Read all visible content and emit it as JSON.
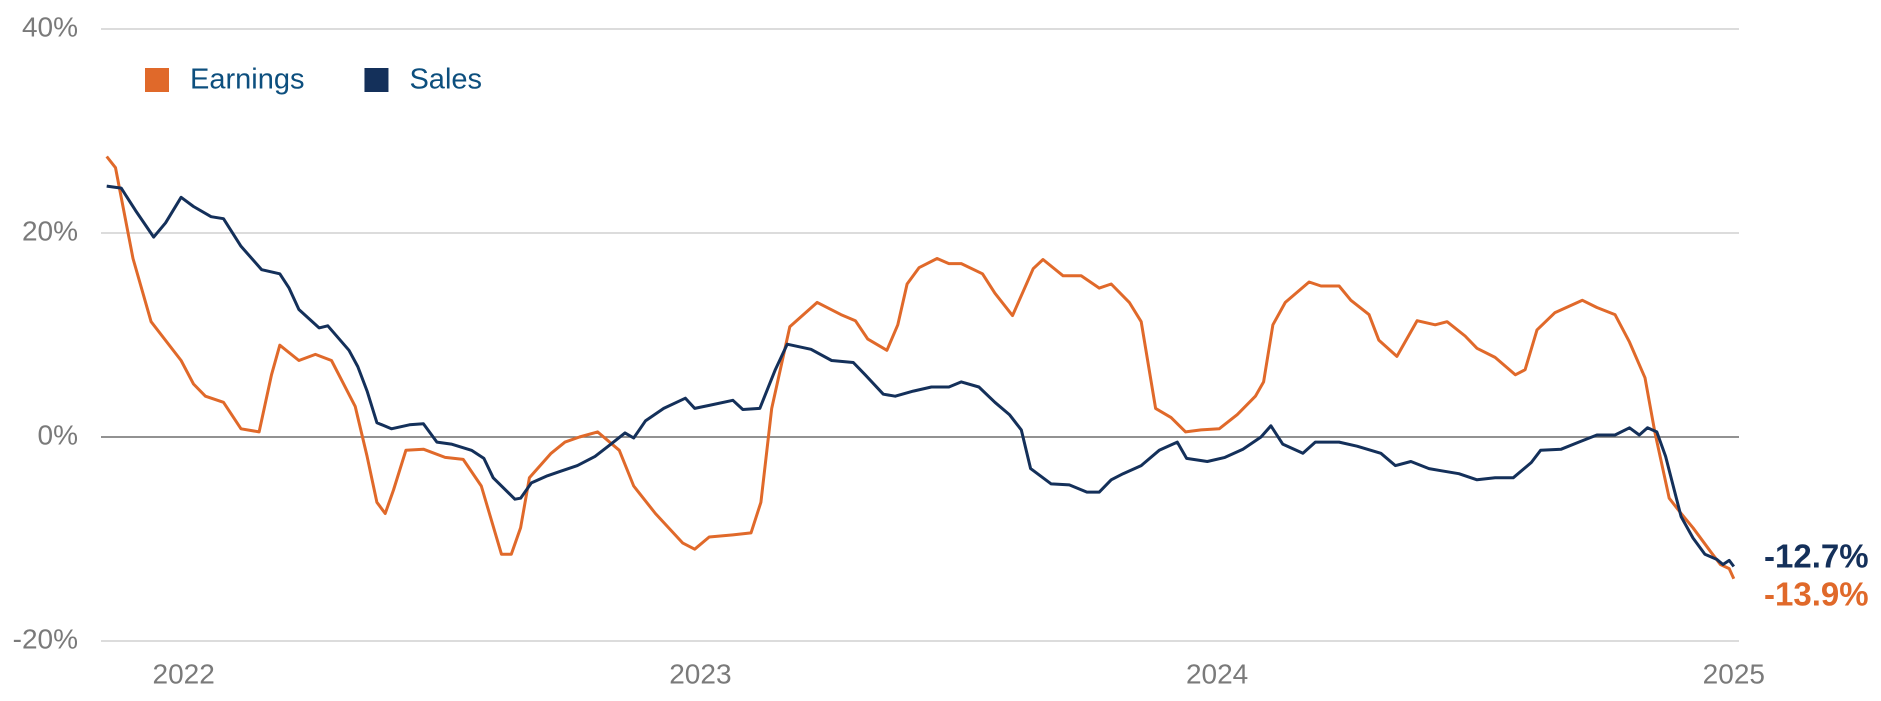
{
  "chart_data": {
    "type": "line",
    "xlim": [
      2021.84,
      2025.01
    ],
    "xticks": [
      2022,
      2023,
      2024,
      2025
    ],
    "ylim": [
      -20,
      40
    ],
    "yticks": [
      {
        "value": -20,
        "label": "-20%"
      },
      {
        "value": 0,
        "label": "0%"
      },
      {
        "value": 20,
        "label": "20%"
      },
      {
        "value": 40,
        "label": "40%"
      }
    ],
    "grid": true,
    "legend": "top-left",
    "series": [
      {
        "name": "Earnings",
        "color": "#e0692a",
        "end_label": "-13.9%",
        "x": [
          2021.851,
          2021.868,
          2021.902,
          2021.937,
          2021.995,
          2022.019,
          2022.042,
          2022.077,
          2022.111,
          2022.146,
          2022.17,
          2022.186,
          2022.223,
          2022.255,
          2022.286,
          2022.332,
          2022.355,
          2022.374,
          2022.39,
          2022.406,
          2022.43,
          2022.464,
          2022.506,
          2022.541,
          2022.576,
          2022.615,
          2022.634,
          2022.652,
          2022.669,
          2022.711,
          2022.738,
          2022.766,
          2022.801,
          2022.843,
          2022.871,
          2022.913,
          2022.966,
          2022.989,
          2023.017,
          2023.063,
          2023.098,
          2023.117,
          2023.138,
          2023.173,
          2023.226,
          2023.272,
          2023.3,
          2023.324,
          2023.361,
          2023.382,
          2023.4,
          2023.423,
          2023.458,
          2023.481,
          2023.505,
          2023.546,
          2023.57,
          2023.604,
          2023.644,
          2023.663,
          2023.702,
          2023.737,
          2023.772,
          2023.795,
          2023.83,
          2023.853,
          2023.881,
          2023.911,
          2023.939,
          2023.969,
          2024.004,
          2024.039,
          2024.074,
          2024.09,
          2024.108,
          2024.132,
          2024.178,
          2024.201,
          2024.236,
          2024.259,
          2024.294,
          2024.313,
          2024.348,
          2024.387,
          2024.422,
          2024.445,
          2024.48,
          2024.503,
          2024.538,
          2024.577,
          2024.596,
          2024.619,
          2024.654,
          2024.707,
          2024.735,
          2024.77,
          2024.798,
          2024.828,
          2024.847,
          2024.875,
          2024.898,
          2024.921,
          2024.956,
          2024.974,
          2024.991,
          2025.0
        ],
        "values": [
          27.5,
          26.4,
          17.5,
          11.3,
          7.5,
          5.2,
          4,
          3.4,
          0.8,
          0.5,
          6.1,
          9,
          7.5,
          8.1,
          7.5,
          3,
          -1.9,
          -6.4,
          -7.5,
          -5.2,
          -1.3,
          -1.2,
          -2,
          -2.2,
          -4.8,
          -11.5,
          -11.5,
          -8.9,
          -4,
          -1.6,
          -0.5,
          0,
          0.5,
          -1.3,
          -4.8,
          -7.5,
          -10.4,
          -11,
          -9.8,
          -9.6,
          -9.4,
          -6.4,
          2.8,
          10.8,
          13.2,
          12,
          11.4,
          9.6,
          8.5,
          11,
          15,
          16.6,
          17.5,
          17,
          17,
          16,
          14.1,
          11.9,
          16.5,
          17.4,
          15.8,
          15.8,
          14.6,
          15,
          13.2,
          11.3,
          2.8,
          1.9,
          0.5,
          0.7,
          0.8,
          2.2,
          4,
          5.4,
          11,
          13.2,
          15.2,
          14.8,
          14.8,
          13.4,
          12,
          9.5,
          7.9,
          11.4,
          11,
          11.3,
          9.9,
          8.7,
          7.8,
          6.1,
          6.6,
          10.5,
          12.2,
          13.4,
          12.7,
          12,
          9.3,
          5.8,
          0.5,
          -6,
          -7.5,
          -8.9,
          -11.3,
          -12.5,
          -12.9,
          -13.9
        ]
      },
      {
        "name": "Sales",
        "color": "#14305a",
        "end_label": "-12.7%",
        "x": [
          2021.851,
          2021.879,
          2021.907,
          2021.942,
          2021.965,
          2021.995,
          2022.019,
          2022.053,
          2022.077,
          2022.111,
          2022.151,
          2022.186,
          2022.204,
          2022.223,
          2022.262,
          2022.279,
          2022.32,
          2022.337,
          2022.355,
          2022.374,
          2022.402,
          2022.437,
          2022.464,
          2022.49,
          2022.518,
          2022.557,
          2022.581,
          2022.599,
          2022.641,
          2022.652,
          2022.673,
          2022.704,
          2022.727,
          2022.762,
          2022.796,
          2022.827,
          2022.854,
          2022.871,
          2022.894,
          2022.929,
          2022.971,
          2022.989,
          2023.017,
          2023.063,
          2023.082,
          2023.115,
          2023.145,
          2023.168,
          2023.214,
          2023.254,
          2023.296,
          2023.319,
          2023.354,
          2023.377,
          2023.412,
          2023.447,
          2023.481,
          2023.505,
          2023.539,
          2023.57,
          2023.598,
          2023.621,
          2023.639,
          2023.679,
          2023.714,
          2023.748,
          2023.772,
          2023.795,
          2023.818,
          2023.853,
          2023.888,
          2023.923,
          2023.941,
          2023.981,
          2024.015,
          2024.05,
          2024.085,
          2024.104,
          2024.127,
          2024.166,
          2024.19,
          2024.236,
          2024.271,
          2024.317,
          2024.345,
          2024.375,
          2024.41,
          2024.433,
          2024.468,
          2024.503,
          2024.538,
          2024.573,
          2024.608,
          2024.626,
          2024.666,
          2024.7,
          2024.735,
          2024.77,
          2024.798,
          2024.817,
          2024.833,
          2024.851,
          2024.868,
          2024.898,
          2024.921,
          2024.944,
          2024.967,
          2024.979,
          2024.991,
          2025.0
        ],
        "values": [
          24.6,
          24.4,
          22.2,
          19.6,
          21,
          23.5,
          22.6,
          21.6,
          21.4,
          18.7,
          16.4,
          16,
          14.6,
          12.5,
          10.7,
          10.9,
          8.5,
          6.9,
          4.5,
          1.4,
          0.8,
          1.2,
          1.3,
          -0.5,
          -0.7,
          -1.3,
          -2.1,
          -4,
          -6.1,
          -6,
          -4.5,
          -3.8,
          -3.4,
          -2.8,
          -1.9,
          -0.7,
          0.4,
          -0.1,
          1.6,
          2.8,
          3.8,
          2.8,
          3.1,
          3.6,
          2.7,
          2.8,
          6.6,
          9.1,
          8.6,
          7.5,
          7.3,
          6.1,
          4.2,
          4,
          4.5,
          4.9,
          4.9,
          5.4,
          4.9,
          3.4,
          2.2,
          0.7,
          -3.1,
          -4.6,
          -4.7,
          -5.4,
          -5.4,
          -4.2,
          -3.6,
          -2.8,
          -1.3,
          -0.5,
          -2.1,
          -2.4,
          -2,
          -1.2,
          0,
          1.1,
          -0.7,
          -1.6,
          -0.5,
          -0.5,
          -0.9,
          -1.6,
          -2.8,
          -2.4,
          -3.1,
          -3.3,
          -3.6,
          -4.2,
          -4,
          -4,
          -2.5,
          -1.3,
          -1.2,
          -0.5,
          0.2,
          0.2,
          0.9,
          0.2,
          0.9,
          0.5,
          -1.9,
          -7.8,
          -9.9,
          -11.5,
          -12,
          -12.5,
          -12.1,
          -12.7
        ]
      }
    ]
  }
}
